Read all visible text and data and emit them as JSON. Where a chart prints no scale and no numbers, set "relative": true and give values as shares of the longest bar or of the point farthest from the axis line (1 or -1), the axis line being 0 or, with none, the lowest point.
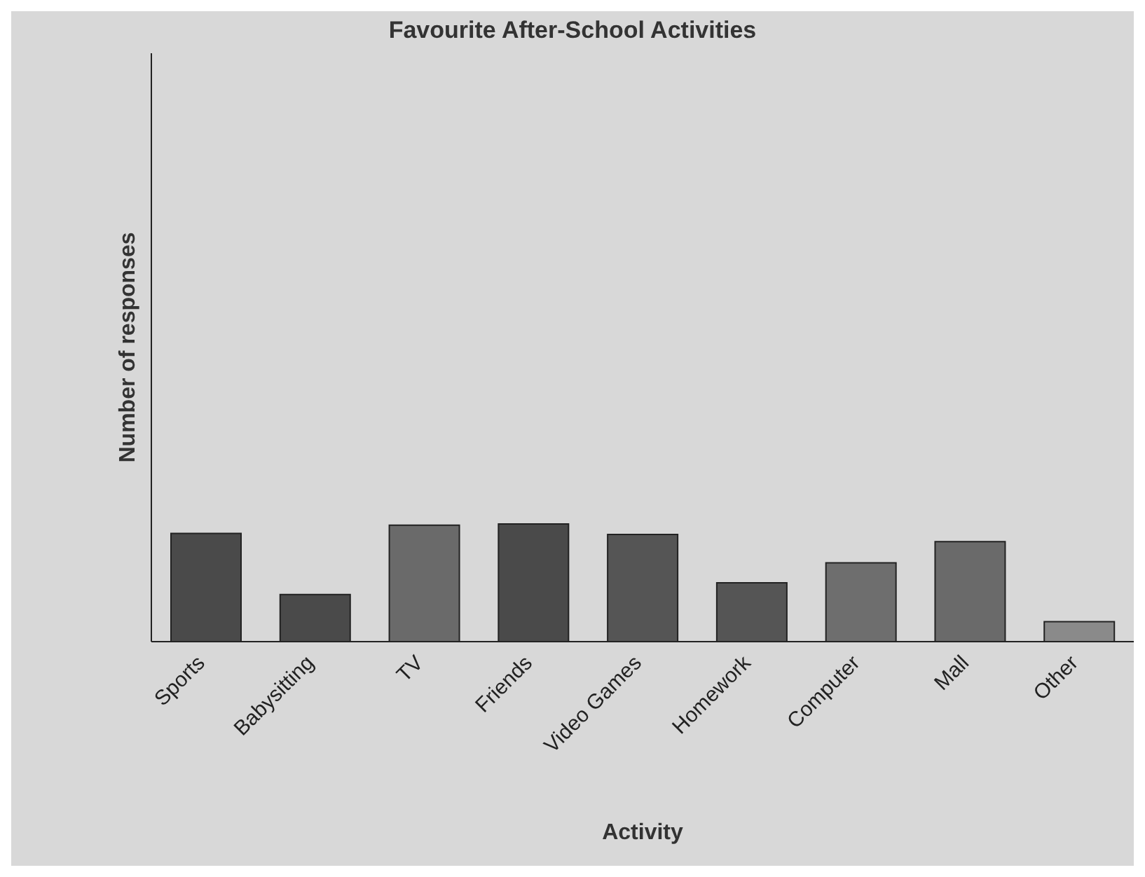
{
  "chart_data": {
    "type": "bar",
    "title": "Favourite After-School Activities",
    "xlabel": "Activity",
    "ylabel": "Number of responses",
    "relative": true,
    "categories": [
      "Sports",
      "Babysitting",
      "TV",
      "Friends",
      "Video Games",
      "Homework",
      "Computer",
      "Mall",
      "Other"
    ],
    "values": [
      0.92,
      0.4,
      0.99,
      1,
      0.91,
      0.5,
      0.67,
      0.85,
      0.17
    ],
    "colors": [
      "#4a4a4a",
      "#4a4a4a",
      "#6a6a6a",
      "#4a4a4a",
      "#555555",
      "#555555",
      "#6e6e6e",
      "#6a6a6a",
      "#8a8a8a"
    ],
    "grid": false,
    "legend": false
  }
}
